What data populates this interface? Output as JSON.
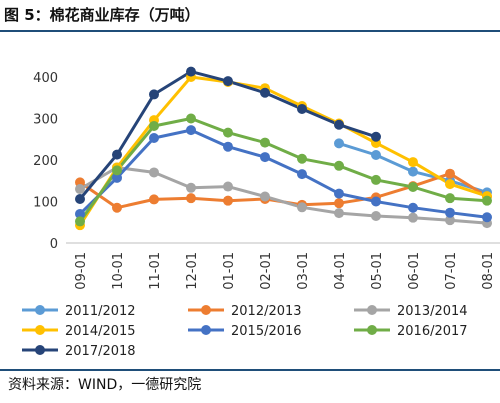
{
  "title": "图 5：棉花商业库存（万吨）",
  "source": "资料来源：WIND，一德研究院",
  "chart_data": {
    "type": "line",
    "title": "图 5：棉花商业库存（万吨）",
    "xlabel": "",
    "ylabel": "",
    "ylim": [
      0,
      400
    ],
    "yticks": [
      0,
      100,
      200,
      300,
      400
    ],
    "grid": false,
    "legend": "bottom",
    "categories": [
      "09-01",
      "10-01",
      "11-01",
      "12-01",
      "01-01",
      "02-01",
      "03-01",
      "04-01",
      "05-01",
      "06-01",
      "07-01",
      "08-01"
    ],
    "series": [
      {
        "name": "2011/2012",
        "color": "#5b9bd5",
        "values": [
          null,
          null,
          null,
          null,
          null,
          null,
          null,
          240,
          212,
          172,
          150,
          122
        ]
      },
      {
        "name": "2012/2013",
        "color": "#ed7d31",
        "values": [
          146,
          85,
          105,
          108,
          102,
          106,
          92,
          96,
          110,
          137,
          167,
          112
        ]
      },
      {
        "name": "2013/2014",
        "color": "#a5a5a5",
        "values": [
          130,
          182,
          170,
          133,
          136,
          112,
          86,
          72,
          65,
          61,
          55,
          48
        ]
      },
      {
        "name": "2014/2015",
        "color": "#ffc000",
        "values": [
          43,
          182,
          296,
          400,
          388,
          373,
          330,
          288,
          241,
          195,
          142,
          113
        ]
      },
      {
        "name": "2015/2016",
        "color": "#4472c4",
        "values": [
          70,
          157,
          253,
          272,
          232,
          207,
          166,
          119,
          100,
          85,
          73,
          62
        ]
      },
      {
        "name": "2016/2017",
        "color": "#70ad47",
        "values": [
          52,
          175,
          282,
          300,
          266,
          242,
          203,
          186,
          152,
          135,
          108,
          102
        ]
      },
      {
        "name": "2017/2018",
        "color": "#264478",
        "values": [
          106,
          213,
          358,
          413,
          390,
          362,
          323,
          285,
          256,
          null,
          null,
          null
        ]
      }
    ]
  }
}
